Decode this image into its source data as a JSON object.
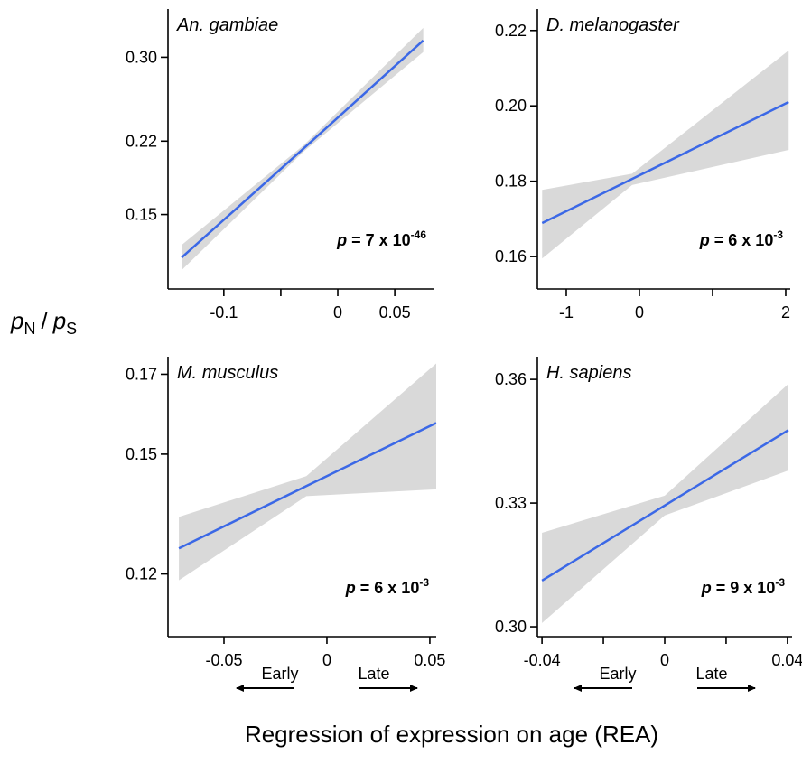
{
  "ylabel": {
    "numerator": {
      "symbol": "p",
      "subscript": "N"
    },
    "separator": "/",
    "denominator": {
      "symbol": "p",
      "subscript": "S"
    }
  },
  "xlabel": "Regression of expression on age (REA)",
  "chart_data": [
    {
      "type": "line",
      "title": "An. gambiae",
      "xlim": [
        -0.149,
        0.084
      ],
      "xticks": [
        -0.1,
        0,
        0.05
      ],
      "xminor": [
        -0.05
      ],
      "ylim": [
        0.079,
        0.346
      ],
      "yticks": [
        0.15,
        0.22,
        {
          "value": 0.3,
          "label": "0.30"
        }
      ],
      "x": [
        -0.137,
        -0.03,
        0.075
      ],
      "series": [
        {
          "color": "#3b68e6",
          "band_color": "#d9d9d9",
          "values": [
            0.109,
            0.213,
            0.316
          ],
          "lower": [
            0.097,
            0.21,
            0.305
          ],
          "upper": [
            0.121,
            0.216,
            0.328
          ]
        }
      ],
      "annotation": {
        "symbol": "p",
        "text": "= 7 x 10",
        "exponent": "-46"
      }
    },
    {
      "type": "line",
      "title": "D. melanogaster",
      "xlim": [
        -1.395,
        2.062
      ],
      "xticks": [
        -1,
        0,
        2
      ],
      "xminor": [
        1
      ],
      "ylim": [
        0.1514,
        0.2257
      ],
      "yticks": [
        0.16,
        0.18,
        {
          "value": 0.2,
          "label": "0.20"
        },
        0.22
      ],
      "x": [
        -1.33,
        -0.1,
        2.04
      ],
      "series": [
        {
          "color": "#3b68e6",
          "band_color": "#d9d9d9",
          "values": [
            0.1689,
            0.1806,
            0.201
          ],
          "lower": [
            0.1595,
            0.179,
            0.1883
          ],
          "upper": [
            0.1777,
            0.182,
            0.2147
          ]
        }
      ],
      "annotation": {
        "symbol": "p",
        "text": "= 6 x 10",
        "exponent": "-3"
      }
    },
    {
      "type": "line",
      "title": "M. musculus",
      "xlim": [
        -0.0772,
        0.0531
      ],
      "xticks": [
        -0.05,
        0,
        0.05
      ],
      "ylim": [
        0.1043,
        0.1744
      ],
      "yticks": [
        0.12,
        0.15,
        0.17
      ],
      "x": [
        -0.0719,
        -0.01,
        0.0531
      ],
      "series": [
        {
          "color": "#3b68e6",
          "band_color": "#d9d9d9",
          "values": [
            0.1264,
            0.142,
            0.1578
          ],
          "lower": [
            0.1184,
            0.1395,
            0.1412
          ],
          "upper": [
            0.1343,
            0.1445,
            0.1727
          ]
        }
      ],
      "annotation": {
        "symbol": "p",
        "text": "= 6 x 10",
        "exponent": "-3"
      },
      "direction_labels": [
        "Early",
        "Late"
      ]
    },
    {
      "type": "line",
      "title": "H. sapiens",
      "xlim": [
        -0.0415,
        0.0415
      ],
      "xticks": [
        -0.04,
        0,
        0.04
      ],
      "xminor": [
        -0.02,
        0.02
      ],
      "ylim": [
        0.2976,
        0.3655
      ],
      "yticks": [
        {
          "value": 0.3,
          "label": "0.30"
        },
        0.33,
        0.36
      ],
      "x": [
        -0.04,
        0,
        0.0403
      ],
      "series": [
        {
          "color": "#3b68e6",
          "band_color": "#d9d9d9",
          "values": [
            0.3112,
            0.3294,
            0.3477
          ],
          "lower": [
            0.3009,
            0.327,
            0.3379
          ],
          "upper": [
            0.3228,
            0.3318,
            0.3589
          ]
        }
      ],
      "annotation": {
        "symbol": "p",
        "text": "= 9 x 10",
        "exponent": "-3"
      },
      "direction_labels": [
        "Early",
        "Late"
      ]
    }
  ]
}
